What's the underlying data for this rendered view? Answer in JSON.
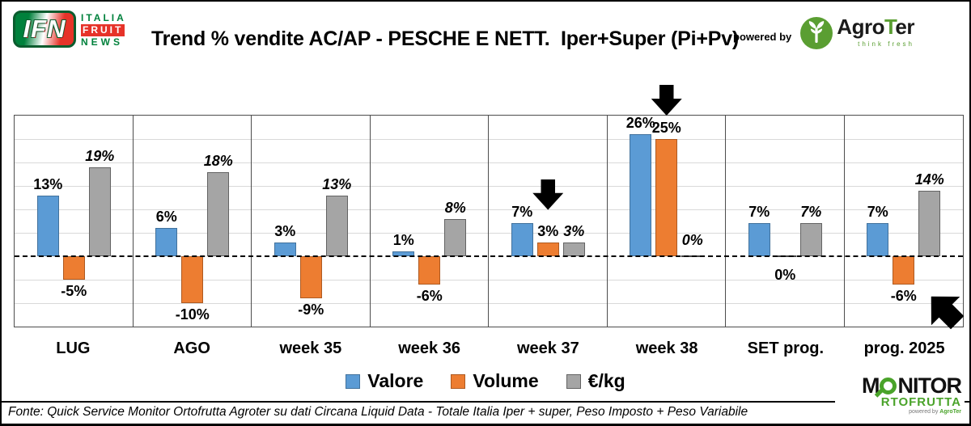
{
  "header": {
    "title": "Trend % vendite AC/AP - PESCHE E NETT.  Iper+Super (Pi+Pv)",
    "powered_by": "powered by",
    "ifn_logo": {
      "acronym": "IFN",
      "line1": "ITALIA",
      "line2": "FRUIT",
      "line3": "NEWS"
    },
    "agroter_logo": {
      "name_prefix": "Agro",
      "name_t": "T",
      "name_suffix": "er",
      "tagline": "think fresh"
    }
  },
  "chart_data": {
    "type": "bar",
    "title": "Trend % vendite AC/AP - PESCHE E NETT.  Iper+Super (Pi+Pv)",
    "categories": [
      "LUG",
      "AGO",
      "week 35",
      "week 36",
      "week 37",
      "week 38",
      "SET prog.",
      "prog. 2025"
    ],
    "series": [
      {
        "name": "Valore",
        "color": "#5B9BD5",
        "border": "#41719C",
        "values": [
          13,
          6,
          3,
          1,
          7,
          26,
          7,
          7
        ]
      },
      {
        "name": "Volume",
        "color": "#ED7D31",
        "border": "#AE5A21",
        "values": [
          -5,
          -10,
          -9,
          -6,
          3,
          25,
          0,
          -6
        ]
      },
      {
        "name": "€/kg",
        "color": "#A5A5A5",
        "border": "#636363",
        "values": [
          19,
          18,
          13,
          8,
          3,
          0,
          7,
          14
        ]
      }
    ],
    "label_format": "{v}%",
    "ylim": [
      -15,
      30
    ],
    "gridline_step": 5,
    "grid": true,
    "zero_line_style": "dashed",
    "legend_position": "bottom",
    "zero_label_sides": [
      {
        "category_index": 5,
        "series_index": 2,
        "side": "above"
      },
      {
        "category_index": 6,
        "series_index": 1,
        "side": "below"
      }
    ],
    "annotations": [
      {
        "type": "arrow-down",
        "category_index": 4,
        "series_index": 1
      },
      {
        "type": "arrow-down",
        "category_index": 5,
        "series_index": 1
      },
      {
        "type": "arrow-up-left",
        "category_index": 7
      }
    ],
    "styles": {
      "grid_color": "#d9d9d9",
      "axis_color": "#4d4d4d",
      "zero_line_color": "#000000",
      "arrow_color": "#000000"
    }
  },
  "footer": {
    "text": "Fonte: Quick Service Monitor Ortofrutta Agroter su dati Circana Liquid Data - Totale Italia Iper + super, Peso Imposto + Peso Variabile"
  },
  "monitor_logo": {
    "line1_start": "M",
    "line1_rest": "NITOR",
    "line2": "RTOFRUTTA",
    "powered_prefix": "powered by ",
    "powered_name": "AgroTer"
  }
}
